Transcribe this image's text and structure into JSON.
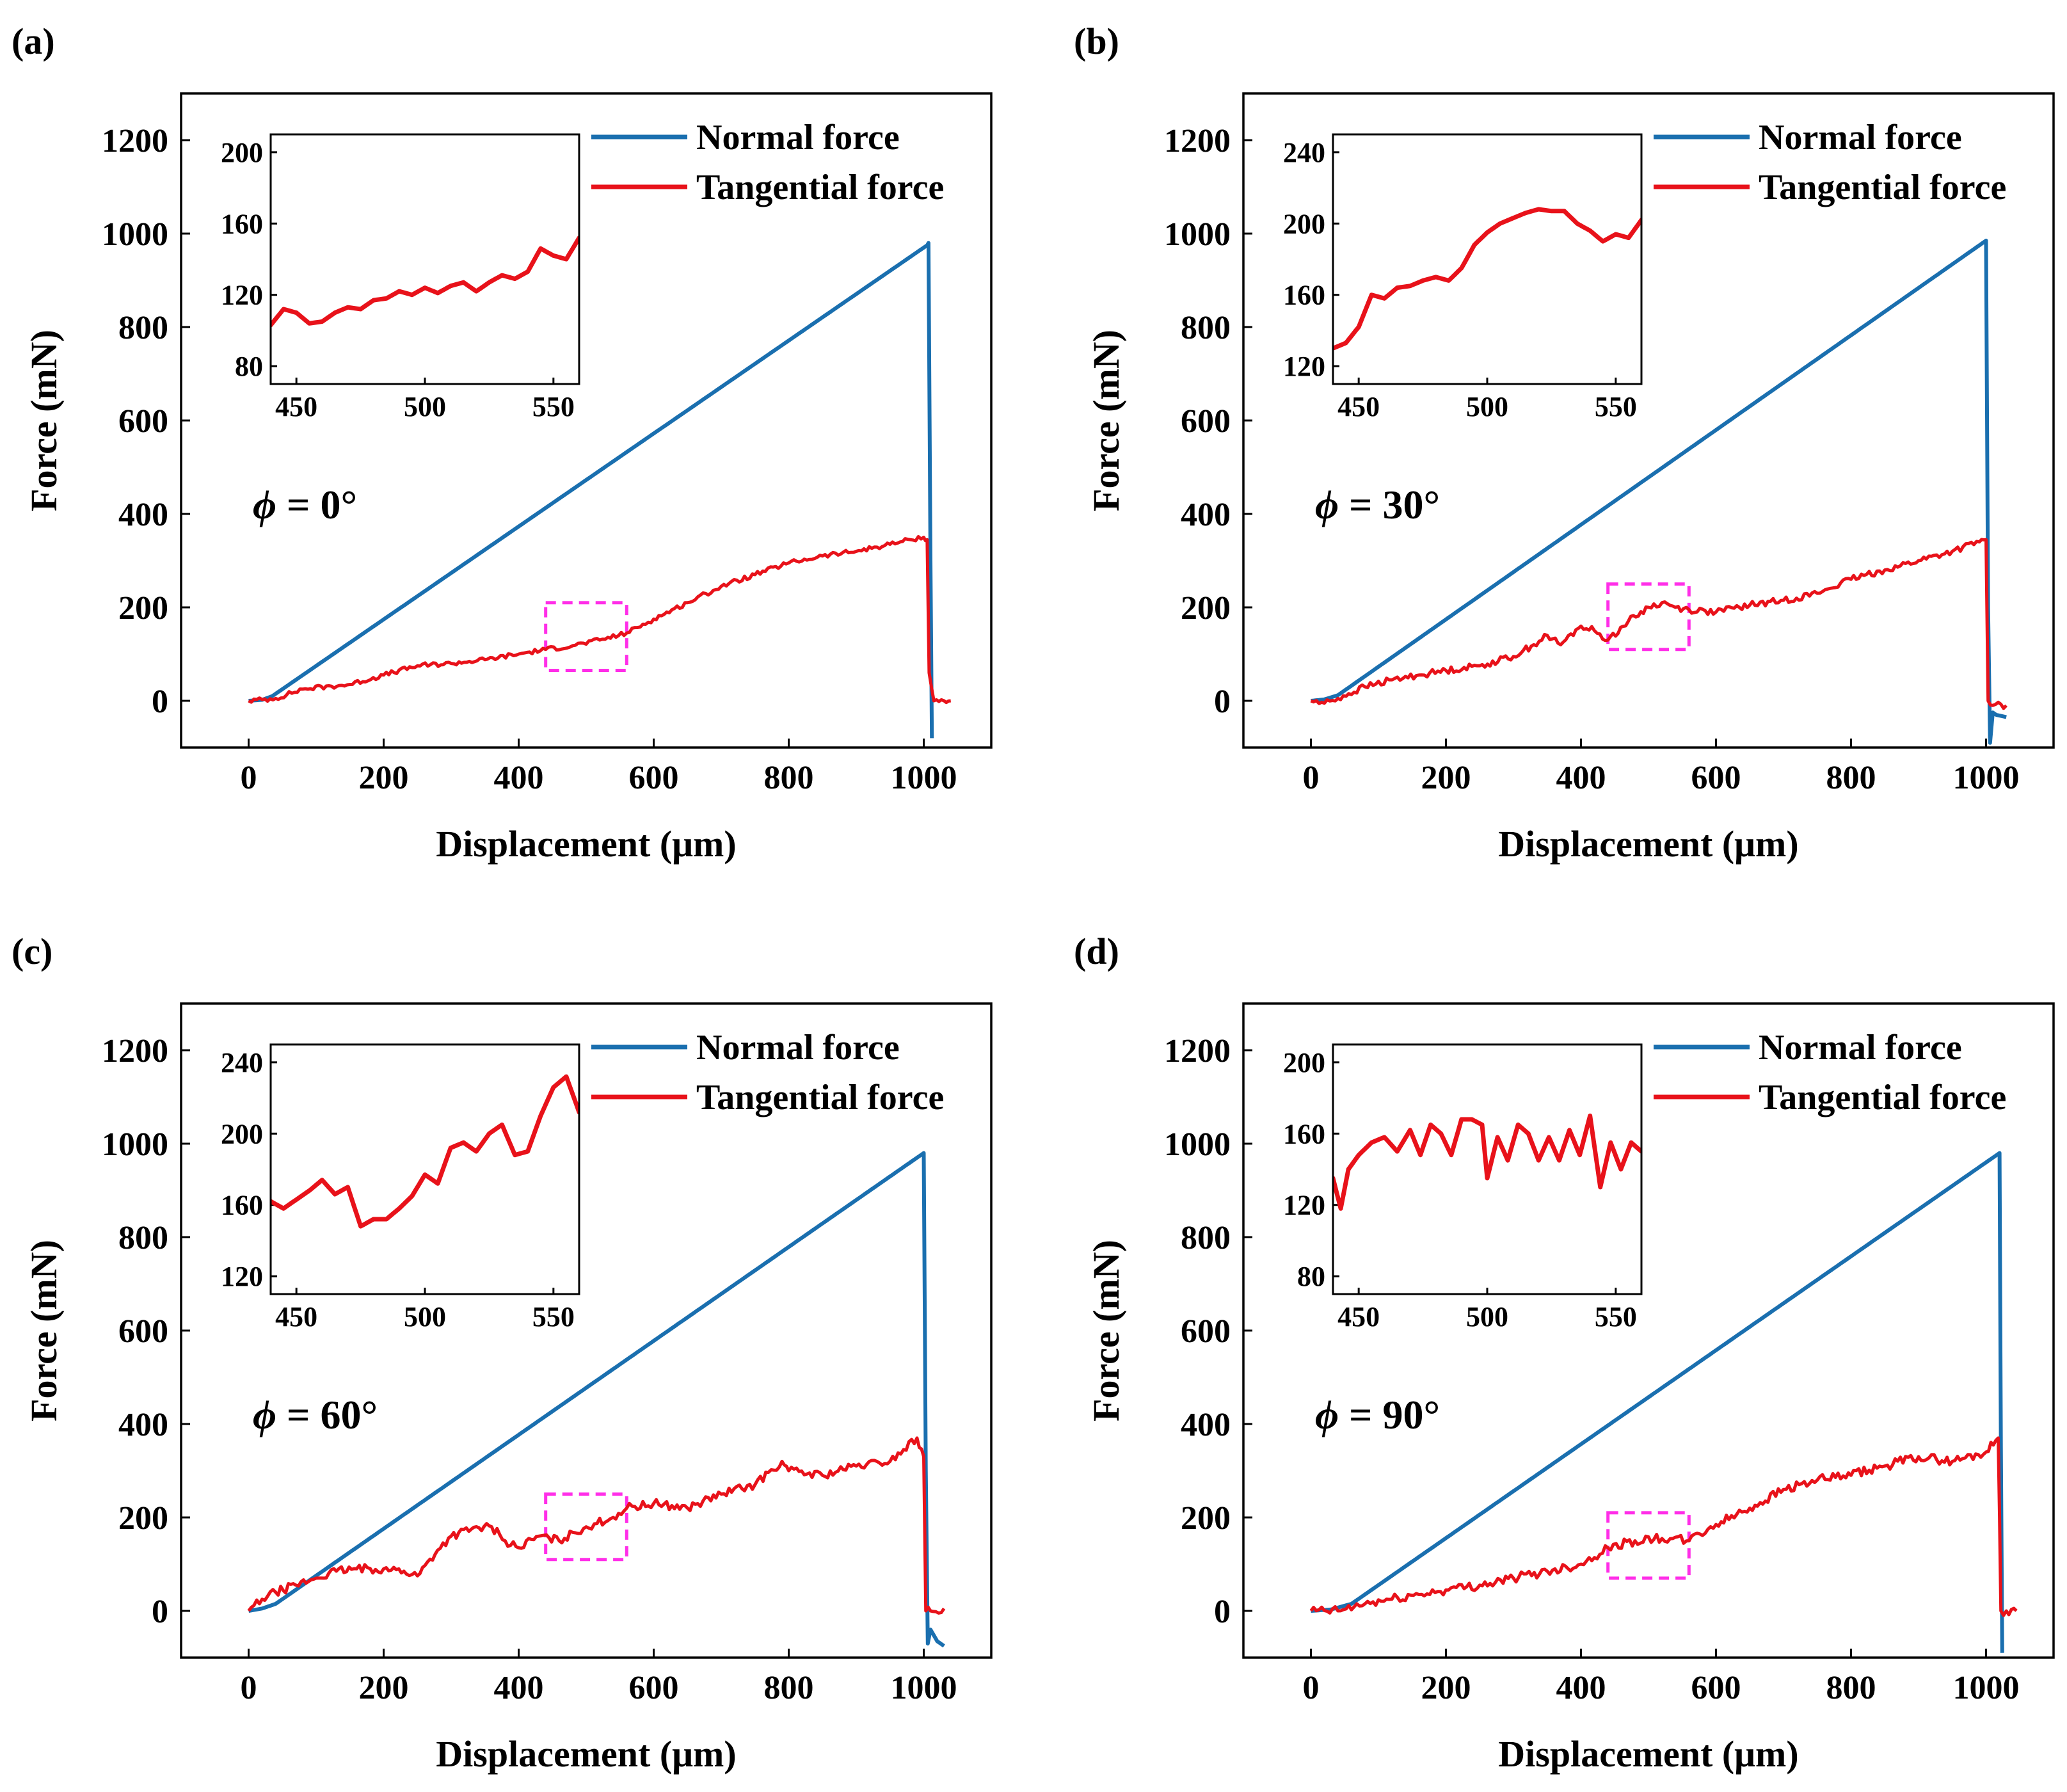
{
  "figure": {
    "panels_count": 4,
    "colors": {
      "normal": "#1a6faf",
      "tangential": "#e8121a",
      "highlight_box": "#ff2ee8",
      "axes": "#000000"
    }
  },
  "chart_data": [
    {
      "panel": "(a)",
      "type": "line",
      "title": "",
      "xlabel": "Displacement (μm)",
      "ylabel": "Force (mN)",
      "xlim": [
        -100,
        1100
      ],
      "ylim": [
        -100,
        1300
      ],
      "xticks": [
        0,
        200,
        400,
        600,
        800,
        1000
      ],
      "yticks": [
        0,
        200,
        400,
        600,
        800,
        1000,
        1200
      ],
      "annotation": {
        "symbol": "ϕ",
        "text": " = 0°"
      },
      "legend": {
        "position": "top-right",
        "entries": [
          "Normal force",
          "Tangential force"
        ]
      },
      "highlight_box": {
        "x": [
          440,
          560
        ],
        "y": [
          65,
          210
        ]
      },
      "series": [
        {
          "name": "Normal force",
          "color": "#1a6faf",
          "x": [
            0,
            20,
            35,
            1005,
            1007,
            1010,
            1012
          ],
          "y": [
            0,
            2,
            10,
            975,
            980,
            300,
            -80
          ]
        },
        {
          "name": "Tangential force",
          "color": "#e8121a",
          "x": [
            0,
            40,
            80,
            150,
            200,
            250,
            300,
            350,
            400,
            440,
            480,
            520,
            560,
            600,
            650,
            700,
            750,
            800,
            850,
            900,
            950,
            980,
            1000,
            1005,
            1008,
            1015,
            1030,
            1040
          ],
          "y": [
            0,
            5,
            25,
            35,
            55,
            75,
            80,
            88,
            100,
            110,
            118,
            130,
            145,
            175,
            210,
            245,
            270,
            295,
            310,
            320,
            335,
            345,
            350,
            345,
            60,
            0,
            0,
            0
          ],
          "noise": 5
        }
      ],
      "inset": {
        "xlim": [
          440,
          560
        ],
        "ylim": [
          70,
          210
        ],
        "xticks": [
          450,
          500,
          550
        ],
        "yticks": [
          80,
          120,
          160,
          200
        ],
        "series": {
          "name": "Tangential force",
          "color": "#e8121a",
          "x": [
            440,
            445,
            450,
            455,
            460,
            465,
            470,
            475,
            480,
            485,
            490,
            495,
            500,
            505,
            510,
            515,
            520,
            525,
            530,
            535,
            540,
            545,
            550,
            555,
            560
          ],
          "y": [
            103,
            112,
            110,
            104,
            105,
            110,
            113,
            112,
            117,
            118,
            122,
            120,
            124,
            121,
            125,
            127,
            122,
            127,
            131,
            129,
            133,
            146,
            142,
            140,
            152
          ]
        }
      }
    },
    {
      "panel": "(b)",
      "type": "line",
      "title": "",
      "xlabel": "Displacement (μm)",
      "ylabel": "Force (mN)",
      "xlim": [
        -100,
        1100
      ],
      "ylim": [
        -100,
        1300
      ],
      "xticks": [
        0,
        200,
        400,
        600,
        800,
        1000
      ],
      "yticks": [
        0,
        200,
        400,
        600,
        800,
        1000,
        1200
      ],
      "annotation": {
        "symbol": "ϕ",
        "text": " = 30°"
      },
      "legend": {
        "position": "top-right",
        "entries": [
          "Normal force",
          "Tangential force"
        ]
      },
      "highlight_box": {
        "x": [
          440,
          560
        ],
        "y": [
          110,
          250
        ]
      },
      "series": [
        {
          "name": "Normal force",
          "color": "#1a6faf",
          "x": [
            0,
            20,
            40,
            995,
            1000,
            1003,
            1006,
            1010,
            1015,
            1030
          ],
          "y": [
            0,
            3,
            12,
            980,
            985,
            200,
            -90,
            -25,
            -30,
            -35
          ]
        },
        {
          "name": "Tangential force",
          "color": "#e8121a",
          "x": [
            0,
            20,
            40,
            80,
            120,
            160,
            200,
            250,
            300,
            330,
            350,
            370,
            400,
            420,
            440,
            470,
            500,
            520,
            540,
            560,
            600,
            650,
            700,
            750,
            800,
            850,
            900,
            950,
            990,
            1000,
            1003,
            1010,
            1030
          ],
          "y": [
            0,
            -5,
            5,
            30,
            45,
            55,
            65,
            75,
            95,
            120,
            140,
            120,
            160,
            150,
            130,
            170,
            200,
            210,
            200,
            195,
            190,
            205,
            215,
            230,
            260,
            280,
            300,
            320,
            340,
            345,
            0,
            -10,
            -10
          ],
          "noise": 7
        }
      ],
      "inset": {
        "xlim": [
          440,
          560
        ],
        "ylim": [
          110,
          250
        ],
        "xticks": [
          450,
          500,
          550
        ],
        "yticks": [
          120,
          160,
          200,
          240
        ],
        "series": {
          "name": "Tangential force",
          "color": "#e8121a",
          "x": [
            440,
            445,
            450,
            455,
            460,
            465,
            470,
            475,
            480,
            485,
            490,
            495,
            500,
            505,
            510,
            515,
            520,
            525,
            530,
            535,
            540,
            545,
            550,
            555,
            560
          ],
          "y": [
            130,
            133,
            142,
            160,
            158,
            164,
            165,
            168,
            170,
            168,
            175,
            188,
            195,
            200,
            203,
            206,
            208,
            207,
            207,
            200,
            196,
            190,
            194,
            192,
            202
          ]
        }
      }
    },
    {
      "panel": "(c)",
      "type": "line",
      "title": "",
      "xlabel": "Displacement (μm)",
      "ylabel": "Force (mN)",
      "xlim": [
        -100,
        1100
      ],
      "ylim": [
        -100,
        1300
      ],
      "xticks": [
        0,
        200,
        400,
        600,
        800,
        1000
      ],
      "yticks": [
        0,
        200,
        400,
        600,
        800,
        1000,
        1200
      ],
      "annotation": {
        "symbol": "ϕ",
        "text": " = 60°"
      },
      "legend": {
        "position": "top-right",
        "entries": [
          "Normal force",
          "Tangential force"
        ]
      },
      "highlight_box": {
        "x": [
          440,
          560
        ],
        "y": [
          110,
          250
        ]
      },
      "series": [
        {
          "name": "Normal force",
          "color": "#1a6faf",
          "x": [
            0,
            20,
            40,
            995,
            1000,
            1003,
            1006,
            1010,
            1020,
            1030
          ],
          "y": [
            0,
            5,
            15,
            975,
            980,
            300,
            -70,
            -40,
            -65,
            -75
          ]
        },
        {
          "name": "Tangential force",
          "color": "#e8121a",
          "x": [
            0,
            20,
            40,
            70,
            100,
            130,
            160,
            200,
            230,
            250,
            280,
            300,
            330,
            360,
            380,
            400,
            430,
            460,
            500,
            540,
            560,
            600,
            650,
            700,
            750,
            790,
            800,
            850,
            900,
            950,
            990,
            1000,
            1003,
            1010,
            1030
          ],
          "y": [
            0,
            25,
            40,
            55,
            70,
            85,
            90,
            90,
            85,
            75,
            130,
            160,
            175,
            180,
            150,
            135,
            160,
            150,
            180,
            200,
            220,
            230,
            220,
            250,
            270,
            320,
            300,
            290,
            310,
            320,
            370,
            330,
            0,
            0,
            5
          ],
          "noise": 9
        }
      ],
      "inset": {
        "xlim": [
          440,
          560
        ],
        "ylim": [
          110,
          250
        ],
        "xticks": [
          450,
          500,
          550
        ],
        "yticks": [
          120,
          160,
          200,
          240
        ],
        "series": {
          "name": "Tangential force",
          "color": "#e8121a",
          "x": [
            440,
            445,
            450,
            455,
            460,
            465,
            470,
            475,
            480,
            485,
            490,
            495,
            500,
            505,
            510,
            515,
            520,
            525,
            530,
            535,
            540,
            545,
            550,
            555,
            560
          ],
          "y": [
            162,
            158,
            163,
            168,
            174,
            166,
            170,
            148,
            152,
            152,
            158,
            165,
            177,
            172,
            192,
            195,
            190,
            200,
            205,
            188,
            190,
            210,
            226,
            232,
            212
          ]
        }
      }
    },
    {
      "panel": "(d)",
      "type": "line",
      "title": "",
      "xlabel": "Displacement (μm)",
      "ylabel": "Force (mN)",
      "xlim": [
        -100,
        1100
      ],
      "ylim": [
        -100,
        1300
      ],
      "xticks": [
        0,
        200,
        400,
        600,
        800,
        1000
      ],
      "yticks": [
        0,
        200,
        400,
        600,
        800,
        1000,
        1200
      ],
      "annotation": {
        "symbol": "ϕ",
        "text": " = 90°"
      },
      "legend": {
        "position": "top-right",
        "entries": [
          "Normal force",
          "Tangential force"
        ]
      },
      "highlight_box": {
        "x": [
          440,
          560
        ],
        "y": [
          70,
          210
        ]
      },
      "series": [
        {
          "name": "Normal force",
          "color": "#1a6faf",
          "x": [
            0,
            30,
            60,
            1015,
            1020,
            1022,
            1024
          ],
          "y": [
            0,
            3,
            15,
            975,
            980,
            350,
            -90
          ]
        },
        {
          "name": "Tangential force",
          "color": "#e8121a",
          "x": [
            0,
            40,
            80,
            120,
            160,
            200,
            250,
            300,
            350,
            400,
            440,
            480,
            520,
            560,
            600,
            650,
            700,
            750,
            800,
            850,
            900,
            950,
            1000,
            1018,
            1020,
            1022,
            1030,
            1045
          ],
          "y": [
            0,
            0,
            15,
            25,
            35,
            45,
            55,
            70,
            85,
            100,
            135,
            150,
            155,
            150,
            185,
            220,
            260,
            280,
            290,
            310,
            330,
            320,
            340,
            370,
            200,
            0,
            0,
            0
          ],
          "noise": 10
        }
      ],
      "inset": {
        "xlim": [
          440,
          560
        ],
        "ylim": [
          70,
          210
        ],
        "xticks": [
          450,
          500,
          550
        ],
        "yticks": [
          80,
          120,
          160,
          200
        ],
        "series": {
          "name": "Tangential force",
          "color": "#e8121a",
          "x": [
            440,
            443,
            446,
            450,
            455,
            460,
            465,
            470,
            474,
            478,
            482,
            486,
            490,
            494,
            498,
            500,
            504,
            508,
            512,
            516,
            520,
            524,
            528,
            532,
            536,
            540,
            544,
            548,
            552,
            556,
            560
          ],
          "y": [
            135,
            118,
            140,
            148,
            155,
            158,
            150,
            162,
            148,
            165,
            160,
            148,
            168,
            168,
            165,
            135,
            158,
            145,
            165,
            160,
            145,
            158,
            145,
            162,
            148,
            170,
            130,
            155,
            140,
            155,
            150
          ]
        }
      }
    }
  ]
}
